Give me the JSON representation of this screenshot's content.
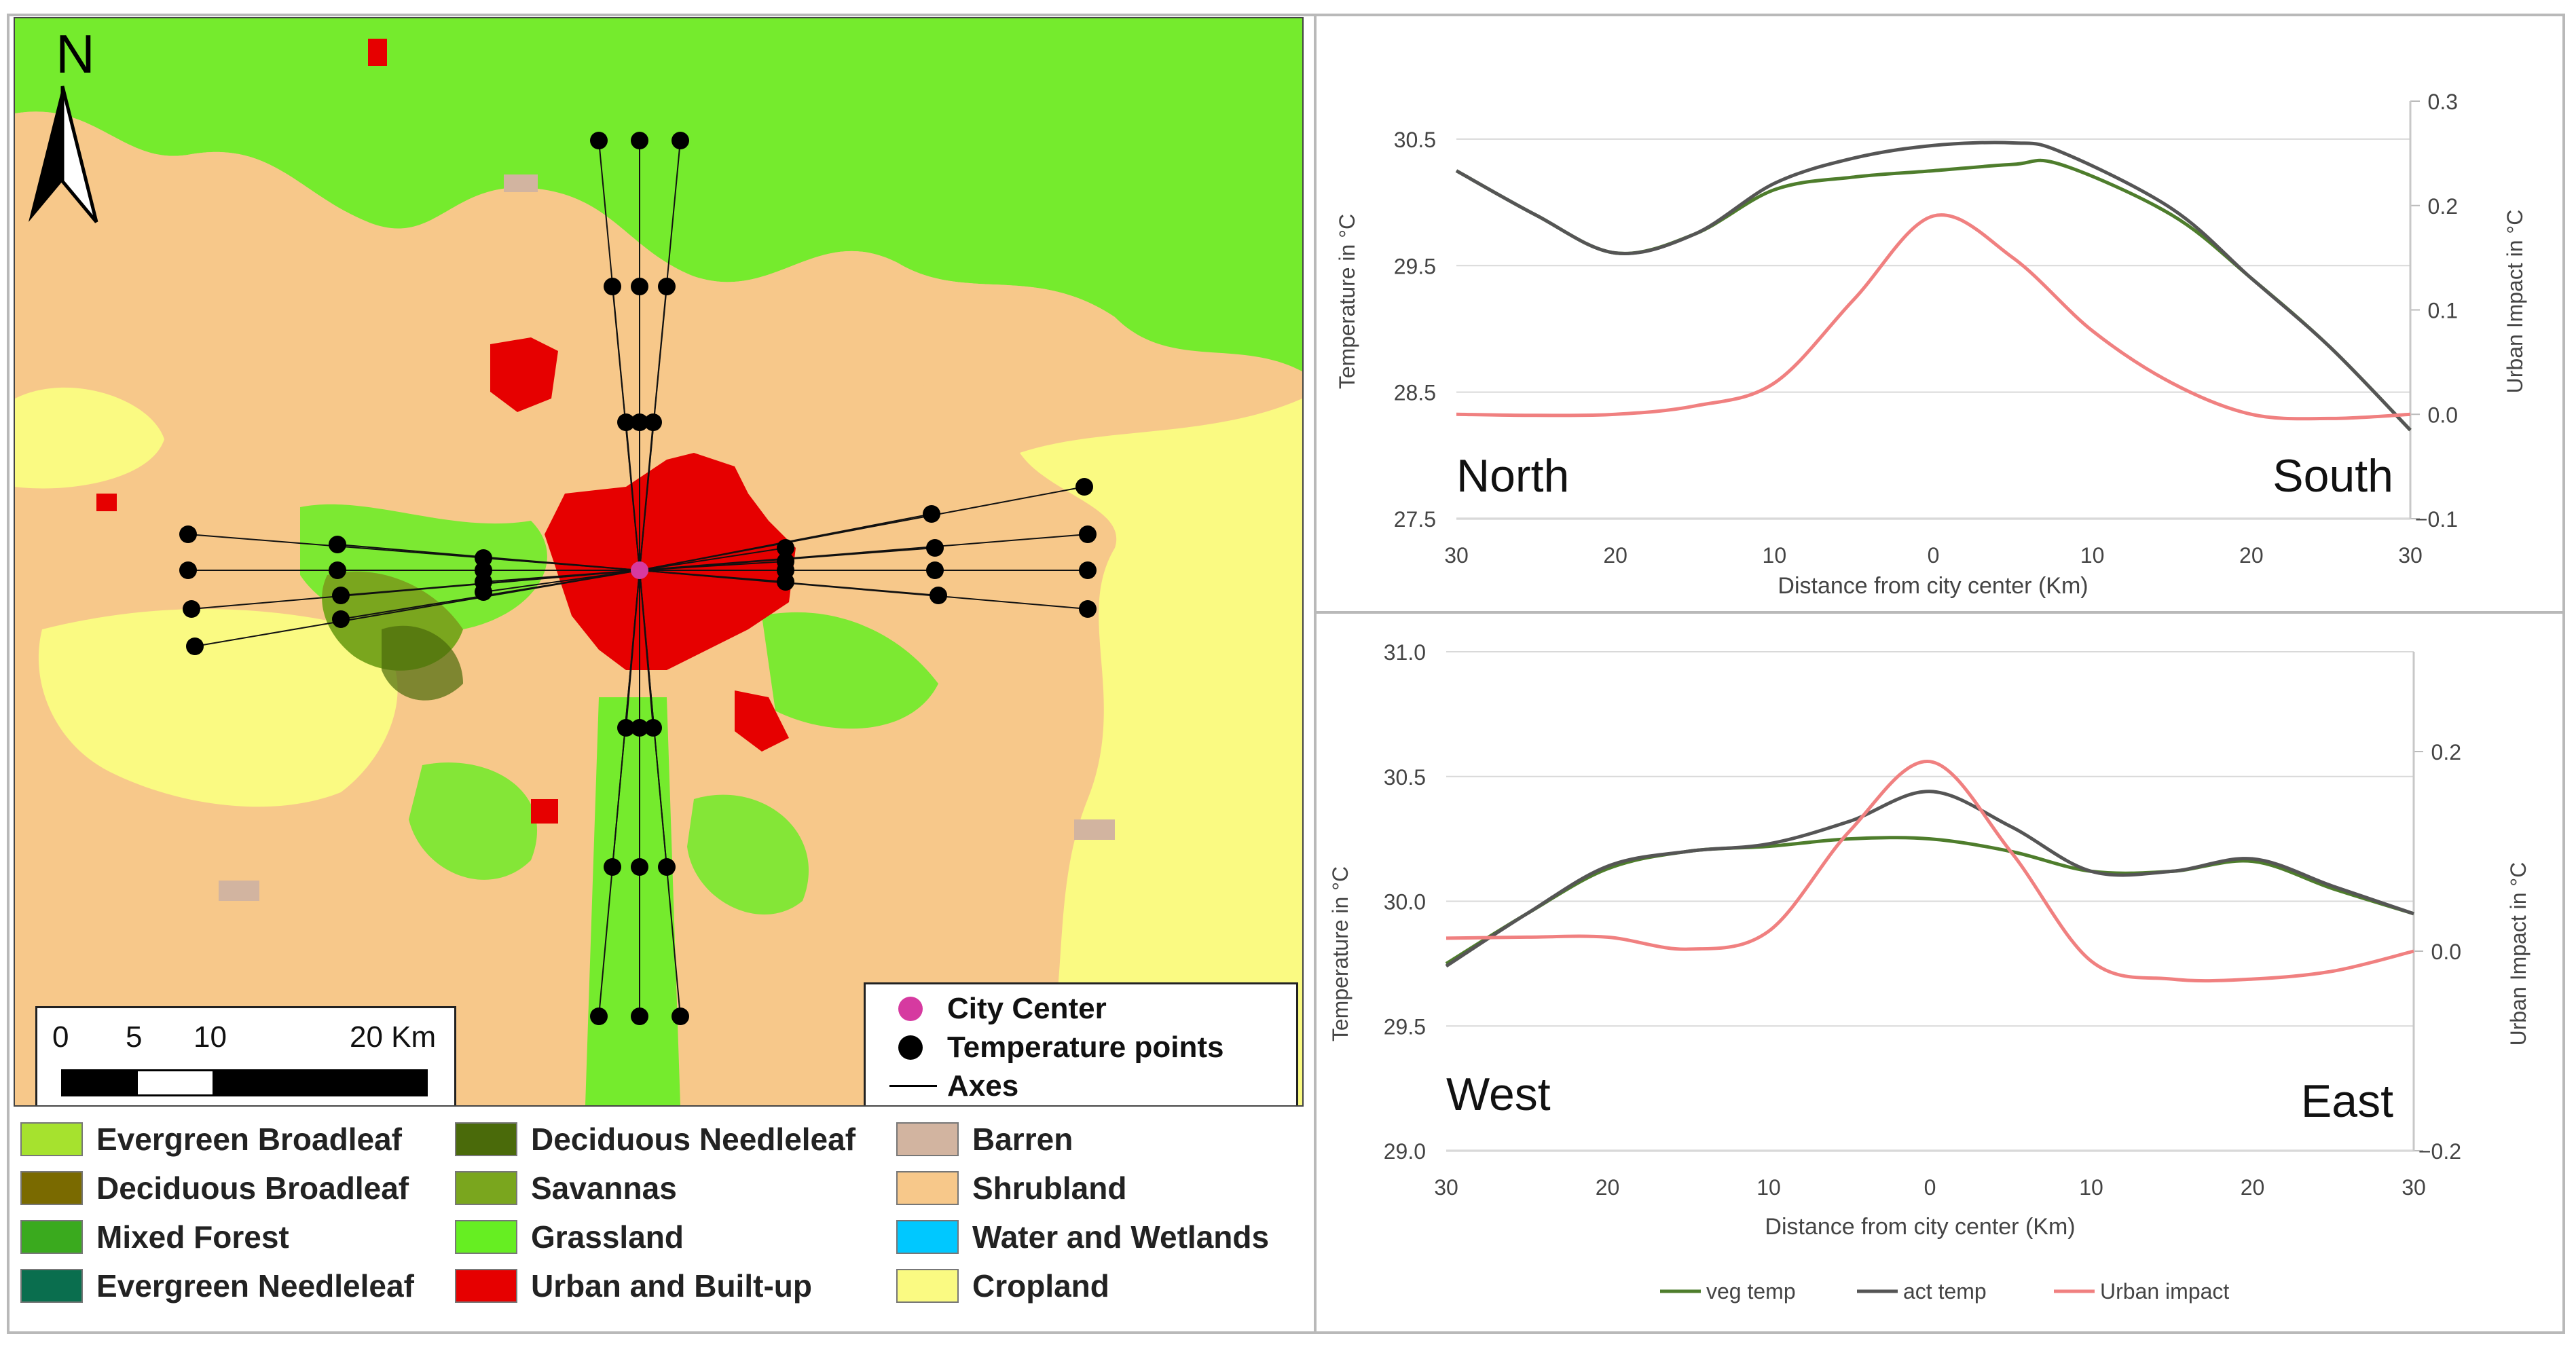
{
  "map": {
    "north_label": "N",
    "scale": {
      "ticks": [
        "0",
        "5",
        "10",
        "20 Km"
      ]
    },
    "map_legend": [
      {
        "label": "City Center",
        "symbol": "magenta-dot",
        "color": "#d63aa0"
      },
      {
        "label": "Temperature points",
        "symbol": "black-dot",
        "color": "#000000"
      },
      {
        "label": "Axes",
        "symbol": "line",
        "color": "#000000"
      }
    ],
    "land_cover_legend": [
      {
        "label": "Evergreen Broadleaf",
        "color": "#a6e22e"
      },
      {
        "label": "Deciduous Broadleaf",
        "color": "#7a6a00"
      },
      {
        "label": "Mixed Forest",
        "color": "#3aaa1e"
      },
      {
        "label": "Evergreen Needleleaf",
        "color": "#0a6e4e"
      },
      {
        "label": "Deciduous Needleleaf",
        "color": "#4a6a0a"
      },
      {
        "label": "Savannas",
        "color": "#7aa61e"
      },
      {
        "label": "Grassland",
        "color": "#66ee22"
      },
      {
        "label": "Urban and Built-up",
        "color": "#e60000"
      },
      {
        "label": "Barren",
        "color": "#d2b4a0"
      },
      {
        "label": "Shrubland",
        "color": "#f7c88a"
      },
      {
        "label": "Water and Wetlands",
        "color": "#00c8ff"
      },
      {
        "label": "Cropland",
        "color": "#fafa82"
      }
    ]
  },
  "chart_data": [
    {
      "type": "line",
      "title": "",
      "corner_labels": {
        "left": "North",
        "right": "South"
      },
      "xlabel": "Distance from city center (Km)",
      "ylabel": "Temperature in °C",
      "y2label": "Urban Impact in °C",
      "x": [
        -30,
        -20,
        -10,
        0,
        10,
        20,
        30
      ],
      "x_tick_labels": [
        "30",
        "20",
        "10",
        "0",
        "10",
        "20",
        "30"
      ],
      "ylim": [
        27.5,
        30.8
      ],
      "y_ticks": [
        "27.5",
        "28.5",
        "29.5",
        "30.5"
      ],
      "y2lim": [
        -0.1,
        0.3
      ],
      "y2_ticks": [
        "−0.1",
        "0.0",
        "0.1",
        "0.2",
        "0.3"
      ],
      "series": [
        {
          "name": "veg temp",
          "axis": "left",
          "color": "#4e7d2c",
          "x": [
            -30,
            -25,
            -20,
            -15,
            -10,
            -5,
            0,
            5,
            8,
            15,
            20,
            25,
            30
          ],
          "values": [
            30.25,
            29.9,
            29.6,
            29.75,
            30.1,
            30.2,
            30.25,
            30.3,
            30.3,
            29.9,
            29.4,
            28.85,
            28.2
          ]
        },
        {
          "name": "act temp",
          "axis": "left",
          "color": "#555555",
          "x": [
            -30,
            -25,
            -20,
            -15,
            -10,
            -5,
            0,
            5,
            8,
            15,
            20,
            25,
            30
          ],
          "values": [
            30.25,
            29.9,
            29.6,
            29.75,
            30.15,
            30.35,
            30.45,
            30.47,
            30.4,
            29.95,
            29.4,
            28.85,
            28.2
          ]
        },
        {
          "name": "Urban impact",
          "axis": "right",
          "color": "#f08080",
          "x": [
            -30,
            -25,
            -20,
            -15,
            -10,
            -5,
            0,
            5,
            10,
            15,
            20,
            25,
            30
          ],
          "values": [
            0.0,
            -0.001,
            0.0,
            0.008,
            0.03,
            0.11,
            0.19,
            0.15,
            0.08,
            0.03,
            0.0,
            -0.004,
            0.0
          ]
        }
      ]
    },
    {
      "type": "line",
      "title": "",
      "corner_labels": {
        "left": "West",
        "right": "East"
      },
      "xlabel": "Distance from city center (Km)",
      "ylabel": "Temperature in °C",
      "y2label": "Urban Impact in °C",
      "x": [
        -30,
        -20,
        -10,
        0,
        10,
        20,
        30
      ],
      "x_tick_labels": [
        "30",
        "20",
        "10",
        "0",
        "10",
        "20",
        "30"
      ],
      "ylim": [
        29.0,
        31.0
      ],
      "y_ticks": [
        "29.0",
        "29.5",
        "30.0",
        "30.5",
        "31.0"
      ],
      "y2lim": [
        -0.2,
        0.3
      ],
      "y2_ticks": [
        "−0.2",
        "0.0",
        "0.2"
      ],
      "series": [
        {
          "name": "veg temp",
          "axis": "left",
          "color": "#4e7d2c",
          "x": [
            -30,
            -25,
            -20,
            -15,
            -10,
            -5,
            0,
            5,
            10,
            15,
            20,
            25,
            30
          ],
          "values": [
            29.75,
            29.95,
            30.13,
            30.2,
            30.22,
            30.25,
            30.25,
            30.2,
            30.12,
            30.12,
            30.16,
            30.05,
            29.95
          ]
        },
        {
          "name": "act temp",
          "axis": "left",
          "color": "#555555",
          "x": [
            -30,
            -25,
            -20,
            -15,
            -10,
            -5,
            0,
            5,
            10,
            15,
            20,
            25,
            30
          ],
          "values": [
            29.74,
            29.95,
            30.14,
            30.2,
            30.23,
            30.32,
            30.44,
            30.3,
            30.12,
            30.12,
            30.17,
            30.06,
            29.95
          ]
        },
        {
          "name": "Urban impact",
          "axis": "right",
          "color": "#f08080",
          "x": [
            -30,
            -25,
            -20,
            -15,
            -10,
            -5,
            0,
            5,
            10,
            15,
            20,
            25,
            30
          ],
          "values": [
            0.013,
            0.014,
            0.014,
            0.002,
            0.02,
            0.12,
            0.19,
            0.1,
            -0.01,
            -0.028,
            -0.028,
            -0.02,
            0.0
          ]
        }
      ],
      "legend": [
        "veg temp",
        "act temp",
        "Urban impact"
      ]
    }
  ]
}
